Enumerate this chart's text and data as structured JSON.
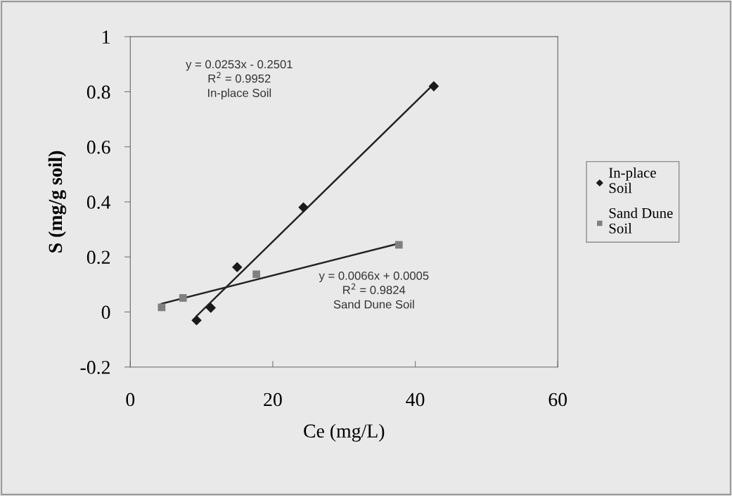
{
  "chart_data": {
    "type": "scatter",
    "xlabel": "Ce (mg/L)",
    "ylabel": "S (mg/g soil)",
    "xlim": [
      0,
      60
    ],
    "xticks": [
      0,
      20,
      40,
      60
    ],
    "ylim": [
      -0.2,
      1
    ],
    "yticks": [
      -0.2,
      0,
      0.2,
      0.4,
      0.6,
      0.8,
      1
    ],
    "grid": false,
    "legend": "right",
    "series": [
      {
        "name": "In-place Soil",
        "marker": "diamond",
        "color": "#1a1a1a",
        "x": [
          9.3,
          11.3,
          15.0,
          24.3,
          42.6
        ],
        "values": [
          -0.03,
          0.015,
          0.163,
          0.38,
          0.82
        ]
      },
      {
        "name": "Sand Dune Soil",
        "marker": "square",
        "color": "#808080",
        "x": [
          4.4,
          7.4,
          17.7,
          37.7
        ],
        "values": [
          0.017,
          0.051,
          0.137,
          0.244
        ]
      },
      {
        "type": "line",
        "marker": "none",
        "color": "#222222",
        "x": [
          9.3,
          42.6
        ],
        "values": [
          -0.015,
          0.828
        ]
      },
      {
        "type": "line",
        "marker": "none",
        "color": "#222222",
        "x": [
          4.4,
          37.7
        ],
        "values": [
          0.03,
          0.249
        ]
      }
    ],
    "annotations": [
      "y = 0.0253x - 0.2501\nR$^{2}$ = 0.9952\nIn-place Soil",
      "y = 0.0066x + 0.0005\nR$^{2}$ = 0.9824\nSand Dune Soil"
    ]
  }
}
